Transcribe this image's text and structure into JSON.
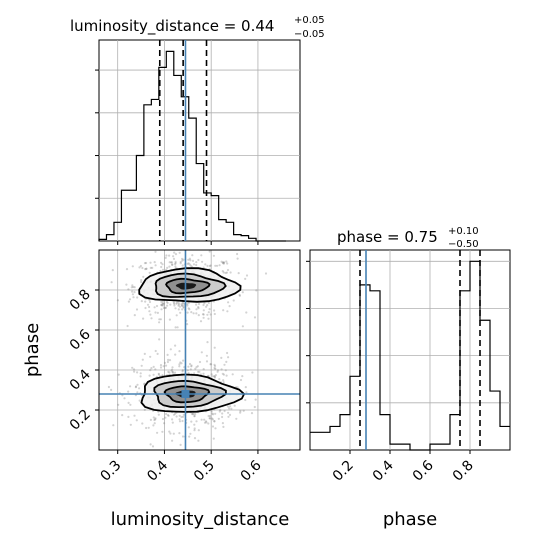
{
  "chart_data": {
    "type": "corner",
    "truth_color": "#4682b4",
    "histogram_color": "#000000",
    "parameters": [
      {
        "name": "luminosity_distance",
        "axis_label": "luminosity_distance",
        "range": [
          0.26,
          0.69
        ],
        "ticks": [
          0.3,
          0.4,
          0.5,
          0.6
        ],
        "tick_labels": [
          "0.3",
          "0.4",
          "0.5",
          "0.6"
        ],
        "title_main": "luminosity_distance = 0.44",
        "title_plus": "+0.05",
        "title_minus": "−0.05",
        "median": 0.44,
        "quantiles": [
          0.39,
          0.44,
          0.49
        ],
        "truth": 0.445,
        "histogram": {
          "edges": [
            0.26,
            0.276,
            0.292,
            0.308,
            0.324,
            0.34,
            0.356,
            0.372,
            0.388,
            0.404,
            0.42,
            0.436,
            0.452,
            0.468,
            0.484,
            0.5,
            0.516,
            0.532,
            0.548,
            0.564,
            0.58,
            0.596,
            0.612,
            0.628,
            0.644,
            0.66
          ],
          "values": [
            0.3,
            1.2,
            3.5,
            9.5,
            9.5,
            16.0,
            25.5,
            26.5,
            32.5,
            35.5,
            31.0,
            27.0,
            23.0,
            14.5,
            9.0,
            8.5,
            4.0,
            3.5,
            1.2,
            1.0,
            0.5,
            0,
            0,
            0,
            0
          ]
        }
      },
      {
        "name": "phase",
        "axis_label": "phase",
        "range": [
          0.0,
          1.0
        ],
        "ticks": [
          0.2,
          0.4,
          0.6,
          0.8
        ],
        "tick_labels": [
          "0.2",
          "0.4",
          "0.6",
          "0.8"
        ],
        "title_main": "phase = 0.75",
        "title_plus": "+0.10",
        "title_minus": "−0.50",
        "median": 0.75,
        "quantiles": [
          0.25,
          0.75,
          0.85
        ],
        "truth": 0.28,
        "histogram": {
          "edges": [
            0.0,
            0.05,
            0.1,
            0.15,
            0.2,
            0.25,
            0.3,
            0.35,
            0.4,
            0.45,
            0.5,
            0.55,
            0.6,
            0.65,
            0.7,
            0.75,
            0.8,
            0.85,
            0.9,
            0.95,
            1.0
          ],
          "values": [
            3,
            3,
            4,
            6,
            12.5,
            28,
            27,
            6,
            1,
            1,
            0,
            0,
            1,
            1,
            6,
            27,
            32,
            22,
            10,
            4
          ]
        }
      }
    ],
    "joint": {
      "x": "luminosity_distance",
      "y": "phase",
      "modes": [
        {
          "cx": 0.445,
          "cy": 0.82,
          "sx": 0.052,
          "sy": 0.075
        },
        {
          "cx": 0.445,
          "cy": 0.28,
          "sx": 0.052,
          "sy": 0.085
        }
      ],
      "truth_point": [
        0.445,
        0.28
      ]
    }
  }
}
